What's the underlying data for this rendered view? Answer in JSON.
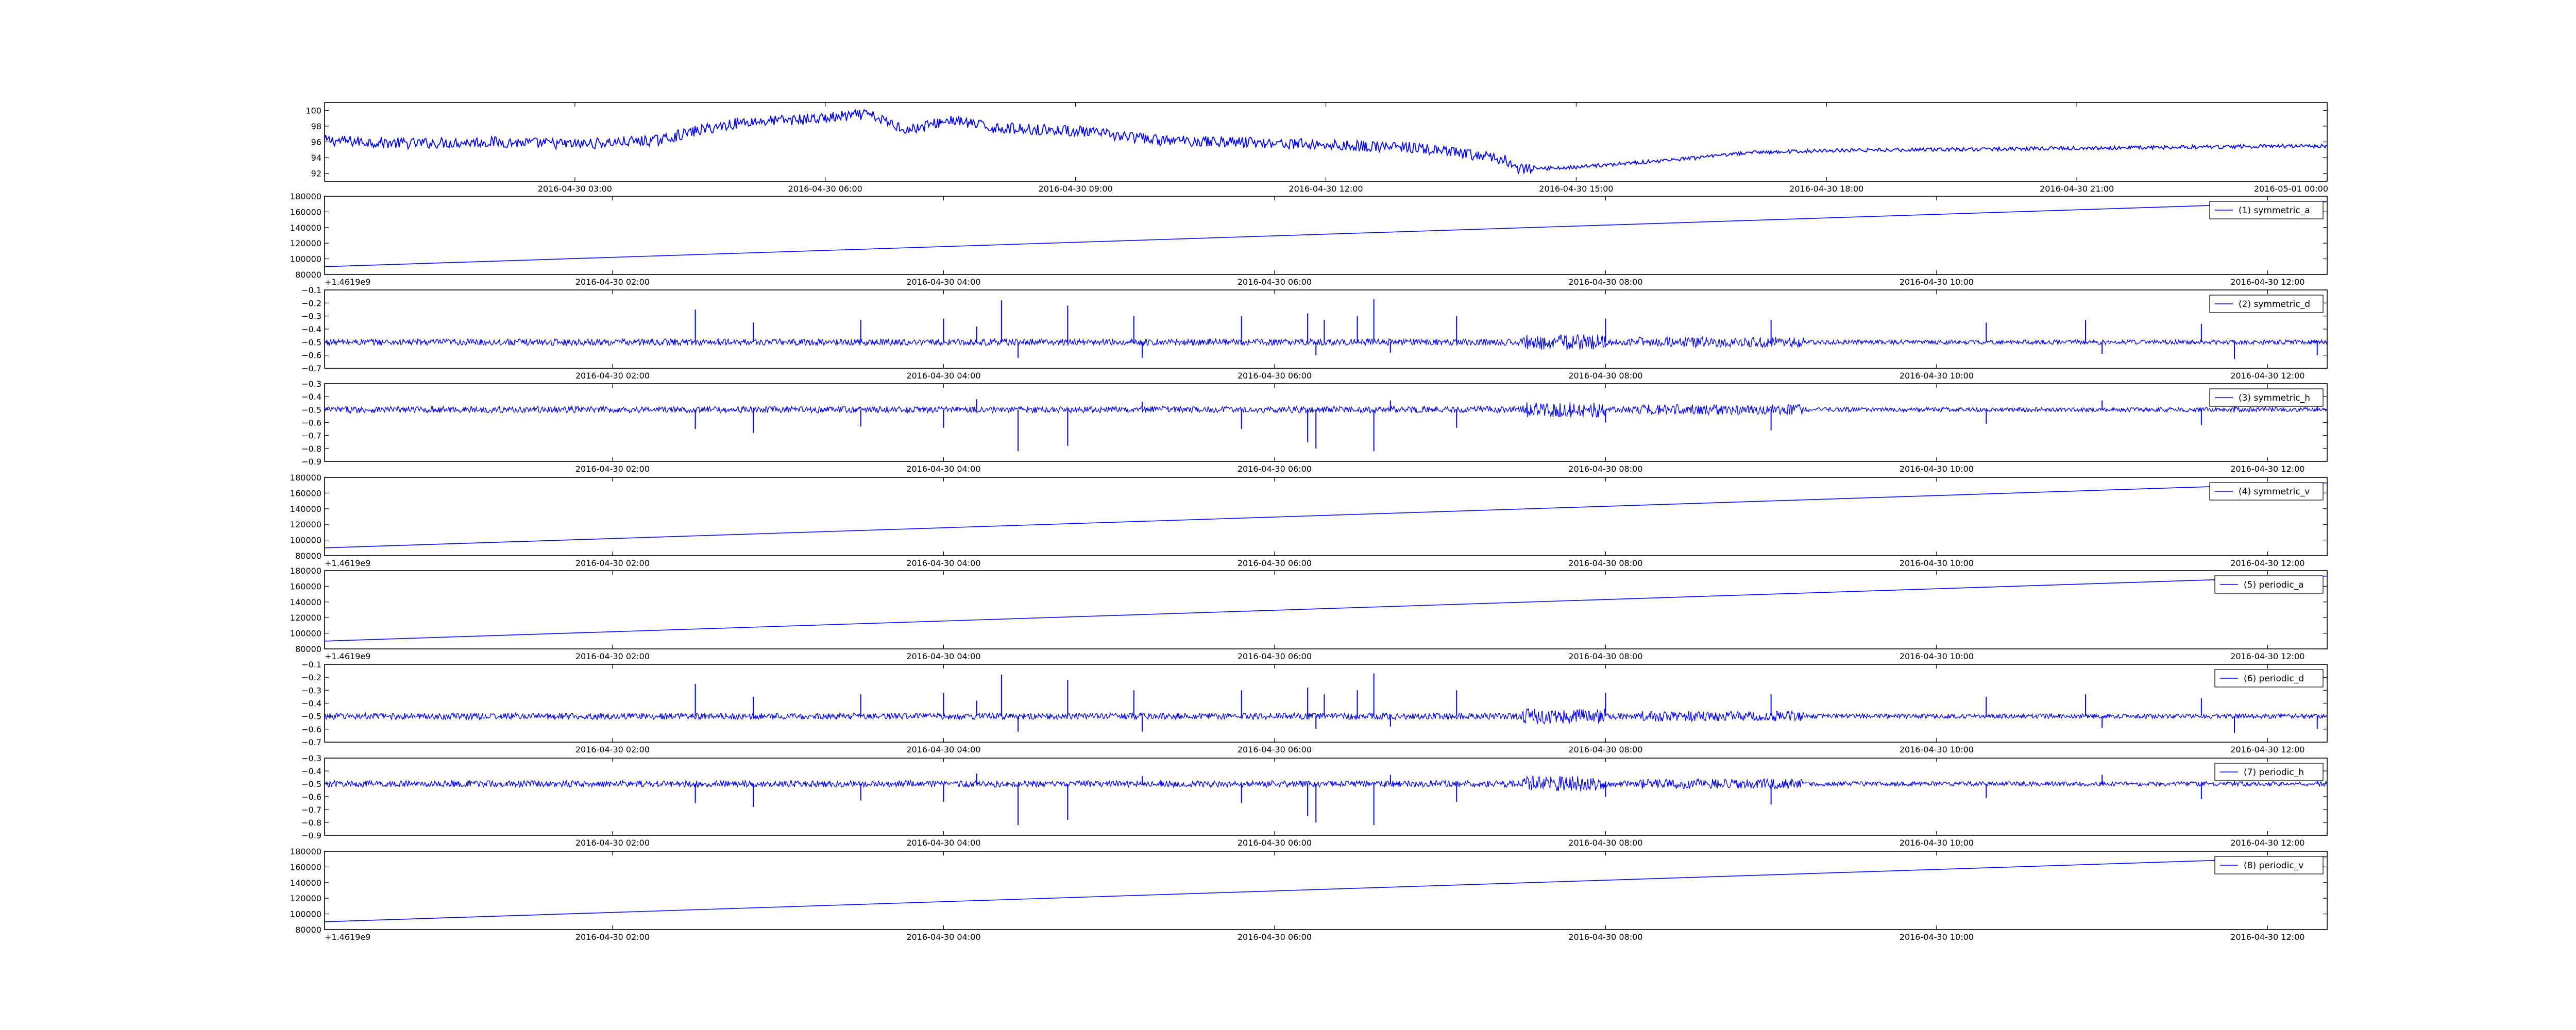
{
  "figure": {
    "background": "#ffffff",
    "line_color": "#0000ff",
    "frame_color": "#000000"
  },
  "chart_data": [
    {
      "type": "line",
      "title": "",
      "xlabel": "",
      "ylabel": "",
      "ylim": [
        91,
        101
      ],
      "grid": false,
      "y_ticks": [
        "92",
        "94",
        "96",
        "98",
        "100"
      ],
      "y_tick_values": [
        92,
        94,
        96,
        98,
        100
      ],
      "y_offset_text": "",
      "x_ticks": [
        "2016-04-30 03:00",
        "2016-04-30 06:00",
        "2016-04-30 09:00",
        "2016-04-30 12:00",
        "2016-04-30 15:00",
        "2016-04-30 18:00",
        "2016-04-30 21:00",
        "2016-05-01 00:00"
      ],
      "x_tick_hours": [
        3,
        6,
        9,
        12,
        15,
        18,
        21,
        24
      ],
      "x_range_hours": [
        0,
        24
      ],
      "legend": "",
      "series": [
        {
          "x_hours": [
            0,
            1,
            2,
            3,
            4,
            4.5,
            5,
            6,
            6.5,
            7,
            7.5,
            8,
            9,
            10,
            11,
            12,
            13,
            14,
            14.2,
            14.3,
            15,
            16,
            16.5,
            17,
            18,
            21,
            24
          ],
          "values": [
            96.2,
            95.8,
            96.0,
            95.7,
            96.2,
            97.5,
            98.5,
            99.0,
            99.5,
            97.5,
            98.8,
            97.8,
            97.4,
            96.2,
            96.0,
            95.6,
            95.3,
            94.0,
            93.5,
            92.5,
            92.8,
            93.6,
            94.0,
            94.6,
            94.9,
            95.2,
            95.5
          ],
          "noise": 0.7
        }
      ]
    },
    {
      "type": "line",
      "title": "",
      "xlabel": "",
      "ylabel": "",
      "ylim": [
        80000,
        180000
      ],
      "grid": false,
      "y_ticks": [
        "80000",
        "100000",
        "120000",
        "140000",
        "160000",
        "180000"
      ],
      "y_tick_values": [
        80000,
        100000,
        120000,
        140000,
        160000,
        180000
      ],
      "y_offset_text": "+1.4619e9",
      "x_ticks": [
        "2016-04-30 02:00",
        "2016-04-30 04:00",
        "2016-04-30 06:00",
        "2016-04-30 08:00",
        "2016-04-30 10:00",
        "2016-04-30 12:00"
      ],
      "x_tick_hours": [
        2,
        4,
        6,
        8,
        10,
        12
      ],
      "x_range_hours": [
        0.26,
        12.36
      ],
      "legend": "top-right",
      "series": [
        {
          "name": "(1) symmetric_a",
          "x_hours": [
            0.26,
            12.36
          ],
          "values": [
            90000,
            173000
          ],
          "noise": 0
        }
      ]
    },
    {
      "type": "line",
      "title": "",
      "xlabel": "",
      "ylabel": "",
      "ylim": [
        -0.7,
        -0.1
      ],
      "grid": false,
      "y_ticks": [
        "−0.7",
        "−0.6",
        "−0.5",
        "−0.4",
        "−0.3",
        "−0.2",
        "−0.1"
      ],
      "y_tick_values": [
        -0.7,
        -0.6,
        -0.5,
        -0.4,
        -0.3,
        -0.2,
        -0.1
      ],
      "y_offset_text": "",
      "x_ticks": [
        "2016-04-30 02:00",
        "2016-04-30 04:00",
        "2016-04-30 06:00",
        "2016-04-30 08:00",
        "2016-04-30 10:00",
        "2016-04-30 12:00"
      ],
      "x_tick_hours": [
        2,
        4,
        6,
        8,
        10,
        12
      ],
      "x_range_hours": [
        0.26,
        12.36
      ],
      "legend": "top-right",
      "series": [
        {
          "name": "(2) symmetric_d",
          "baseline": -0.5,
          "noise": 0.025,
          "spikes": [
            [
              2.5,
              -0.25
            ],
            [
              2.85,
              -0.35
            ],
            [
              3.5,
              -0.33
            ],
            [
              4.0,
              -0.32
            ],
            [
              4.2,
              -0.38
            ],
            [
              4.35,
              -0.18
            ],
            [
              4.45,
              -0.62
            ],
            [
              4.75,
              -0.22
            ],
            [
              5.15,
              -0.3
            ],
            [
              5.2,
              -0.62
            ],
            [
              5.8,
              -0.3
            ],
            [
              6.2,
              -0.28
            ],
            [
              6.25,
              -0.6
            ],
            [
              6.3,
              -0.33
            ],
            [
              6.5,
              -0.3
            ],
            [
              6.6,
              -0.17
            ],
            [
              6.7,
              -0.58
            ],
            [
              7.1,
              -0.3
            ],
            [
              8.0,
              -0.32
            ],
            [
              9.0,
              -0.33
            ],
            [
              10.3,
              -0.35
            ],
            [
              10.9,
              -0.33
            ],
            [
              11.0,
              -0.59
            ],
            [
              11.6,
              -0.36
            ],
            [
              11.8,
              -0.63
            ],
            [
              12.3,
              -0.6
            ]
          ]
        }
      ]
    },
    {
      "type": "line",
      "title": "",
      "xlabel": "",
      "ylabel": "",
      "ylim": [
        -0.9,
        -0.3
      ],
      "grid": false,
      "y_ticks": [
        "−0.9",
        "−0.8",
        "−0.7",
        "−0.6",
        "−0.5",
        "−0.4",
        "−0.3"
      ],
      "y_tick_values": [
        -0.9,
        -0.8,
        -0.7,
        -0.6,
        -0.5,
        -0.4,
        -0.3
      ],
      "y_offset_text": "",
      "x_ticks": [
        "2016-04-30 02:00",
        "2016-04-30 04:00",
        "2016-04-30 06:00",
        "2016-04-30 08:00",
        "2016-04-30 10:00",
        "2016-04-30 12:00"
      ],
      "x_tick_hours": [
        2,
        4,
        6,
        8,
        10,
        12
      ],
      "x_range_hours": [
        0.26,
        12.36
      ],
      "legend": "top-right",
      "series": [
        {
          "name": "(3) symmetric_h",
          "baseline": -0.5,
          "noise": 0.025,
          "spikes": [
            [
              2.5,
              -0.65
            ],
            [
              2.85,
              -0.68
            ],
            [
              3.5,
              -0.63
            ],
            [
              4.0,
              -0.64
            ],
            [
              4.2,
              -0.42
            ],
            [
              4.45,
              -0.82
            ],
            [
              4.75,
              -0.78
            ],
            [
              5.2,
              -0.44
            ],
            [
              5.8,
              -0.65
            ],
            [
              6.2,
              -0.75
            ],
            [
              6.25,
              -0.8
            ],
            [
              6.6,
              -0.82
            ],
            [
              6.7,
              -0.43
            ],
            [
              7.1,
              -0.64
            ],
            [
              8.0,
              -0.6
            ],
            [
              9.0,
              -0.66
            ],
            [
              10.3,
              -0.61
            ],
            [
              11.0,
              -0.43
            ],
            [
              11.6,
              -0.62
            ],
            [
              11.8,
              -0.36
            ],
            [
              12.3,
              -0.41
            ]
          ]
        }
      ]
    },
    {
      "type": "line",
      "title": "",
      "xlabel": "",
      "ylabel": "",
      "ylim": [
        80000,
        180000
      ],
      "grid": false,
      "y_ticks": [
        "80000",
        "100000",
        "120000",
        "140000",
        "160000",
        "180000"
      ],
      "y_tick_values": [
        80000,
        100000,
        120000,
        140000,
        160000,
        180000
      ],
      "y_offset_text": "+1.4619e9",
      "x_ticks": [
        "2016-04-30 02:00",
        "2016-04-30 04:00",
        "2016-04-30 06:00",
        "2016-04-30 08:00",
        "2016-04-30 10:00",
        "2016-04-30 12:00"
      ],
      "x_tick_hours": [
        2,
        4,
        6,
        8,
        10,
        12
      ],
      "x_range_hours": [
        0.26,
        12.36
      ],
      "legend": "top-right",
      "series": [
        {
          "name": "(4) symmetric_v",
          "x_hours": [
            0.26,
            12.36
          ],
          "values": [
            90000,
            173000
          ],
          "noise": 0
        }
      ]
    },
    {
      "type": "line",
      "title": "",
      "xlabel": "",
      "ylabel": "",
      "ylim": [
        80000,
        180000
      ],
      "grid": false,
      "y_ticks": [
        "80000",
        "100000",
        "120000",
        "140000",
        "160000",
        "180000"
      ],
      "y_tick_values": [
        80000,
        100000,
        120000,
        140000,
        160000,
        180000
      ],
      "y_offset_text": "+1.4619e9",
      "x_ticks": [
        "2016-04-30 02:00",
        "2016-04-30 04:00",
        "2016-04-30 06:00",
        "2016-04-30 08:00",
        "2016-04-30 10:00",
        "2016-04-30 12:00"
      ],
      "x_tick_hours": [
        2,
        4,
        6,
        8,
        10,
        12
      ],
      "x_range_hours": [
        0.26,
        12.36
      ],
      "legend": "top-right",
      "series": [
        {
          "name": "(5) periodic_a",
          "x_hours": [
            0.26,
            12.36
          ],
          "values": [
            90000,
            173000
          ],
          "noise": 0
        }
      ]
    },
    {
      "type": "line",
      "title": "",
      "xlabel": "",
      "ylabel": "",
      "ylim": [
        -0.7,
        -0.1
      ],
      "grid": false,
      "y_ticks": [
        "−0.7",
        "−0.6",
        "−0.5",
        "−0.4",
        "−0.3",
        "−0.2",
        "−0.1"
      ],
      "y_tick_values": [
        -0.7,
        -0.6,
        -0.5,
        -0.4,
        -0.3,
        -0.2,
        -0.1
      ],
      "y_offset_text": "",
      "x_ticks": [
        "2016-04-30 02:00",
        "2016-04-30 04:00",
        "2016-04-30 06:00",
        "2016-04-30 08:00",
        "2016-04-30 10:00",
        "2016-04-30 12:00"
      ],
      "x_tick_hours": [
        2,
        4,
        6,
        8,
        10,
        12
      ],
      "x_range_hours": [
        0.26,
        12.36
      ],
      "legend": "top-right",
      "series": [
        {
          "name": "(6) periodic_d",
          "baseline": -0.5,
          "noise": 0.025,
          "spikes": [
            [
              2.5,
              -0.25
            ],
            [
              2.85,
              -0.35
            ],
            [
              3.5,
              -0.33
            ],
            [
              4.0,
              -0.32
            ],
            [
              4.2,
              -0.38
            ],
            [
              4.35,
              -0.18
            ],
            [
              4.45,
              -0.62
            ],
            [
              4.75,
              -0.22
            ],
            [
              5.15,
              -0.3
            ],
            [
              5.2,
              -0.62
            ],
            [
              5.8,
              -0.3
            ],
            [
              6.2,
              -0.28
            ],
            [
              6.25,
              -0.6
            ],
            [
              6.3,
              -0.33
            ],
            [
              6.5,
              -0.3
            ],
            [
              6.6,
              -0.17
            ],
            [
              6.7,
              -0.58
            ],
            [
              7.1,
              -0.3
            ],
            [
              8.0,
              -0.32
            ],
            [
              9.0,
              -0.33
            ],
            [
              10.3,
              -0.35
            ],
            [
              10.9,
              -0.33
            ],
            [
              11.0,
              -0.59
            ],
            [
              11.6,
              -0.36
            ],
            [
              11.8,
              -0.63
            ],
            [
              12.3,
              -0.6
            ]
          ]
        }
      ]
    },
    {
      "type": "line",
      "title": "",
      "xlabel": "",
      "ylabel": "",
      "ylim": [
        -0.9,
        -0.3
      ],
      "grid": false,
      "y_ticks": [
        "−0.9",
        "−0.8",
        "−0.7",
        "−0.6",
        "−0.5",
        "−0.4",
        "−0.3"
      ],
      "y_tick_values": [
        -0.9,
        -0.8,
        -0.7,
        -0.6,
        -0.5,
        -0.4,
        -0.3
      ],
      "y_offset_text": "",
      "x_ticks": [
        "2016-04-30 02:00",
        "2016-04-30 04:00",
        "2016-04-30 06:00",
        "2016-04-30 08:00",
        "2016-04-30 10:00",
        "2016-04-30 12:00"
      ],
      "x_tick_hours": [
        2,
        4,
        6,
        8,
        10,
        12
      ],
      "x_range_hours": [
        0.26,
        12.36
      ],
      "legend": "top-right",
      "series": [
        {
          "name": "(7) periodic_h",
          "baseline": -0.5,
          "noise": 0.025,
          "spikes": [
            [
              2.5,
              -0.65
            ],
            [
              2.85,
              -0.68
            ],
            [
              3.5,
              -0.63
            ],
            [
              4.0,
              -0.64
            ],
            [
              4.2,
              -0.42
            ],
            [
              4.45,
              -0.82
            ],
            [
              4.75,
              -0.78
            ],
            [
              5.2,
              -0.44
            ],
            [
              5.8,
              -0.65
            ],
            [
              6.2,
              -0.75
            ],
            [
              6.25,
              -0.8
            ],
            [
              6.6,
              -0.82
            ],
            [
              6.7,
              -0.43
            ],
            [
              7.1,
              -0.64
            ],
            [
              8.0,
              -0.6
            ],
            [
              9.0,
              -0.66
            ],
            [
              10.3,
              -0.61
            ],
            [
              11.0,
              -0.43
            ],
            [
              11.6,
              -0.62
            ],
            [
              11.8,
              -0.36
            ],
            [
              12.3,
              -0.41
            ]
          ]
        }
      ]
    },
    {
      "type": "line",
      "title": "",
      "xlabel": "",
      "ylabel": "",
      "ylim": [
        80000,
        180000
      ],
      "grid": false,
      "y_ticks": [
        "80000",
        "100000",
        "120000",
        "140000",
        "160000",
        "180000"
      ],
      "y_tick_values": [
        80000,
        100000,
        120000,
        140000,
        160000,
        180000
      ],
      "y_offset_text": "+1.4619e9",
      "x_ticks": [
        "2016-04-30 02:00",
        "2016-04-30 04:00",
        "2016-04-30 06:00",
        "2016-04-30 08:00",
        "2016-04-30 10:00",
        "2016-04-30 12:00"
      ],
      "x_tick_hours": [
        2,
        4,
        6,
        8,
        10,
        12
      ],
      "x_range_hours": [
        0.26,
        12.36
      ],
      "legend": "top-right",
      "series": [
        {
          "name": "(8) periodic_v",
          "x_hours": [
            0.26,
            12.36
          ],
          "values": [
            90000,
            173000
          ],
          "noise": 0
        }
      ]
    }
  ]
}
